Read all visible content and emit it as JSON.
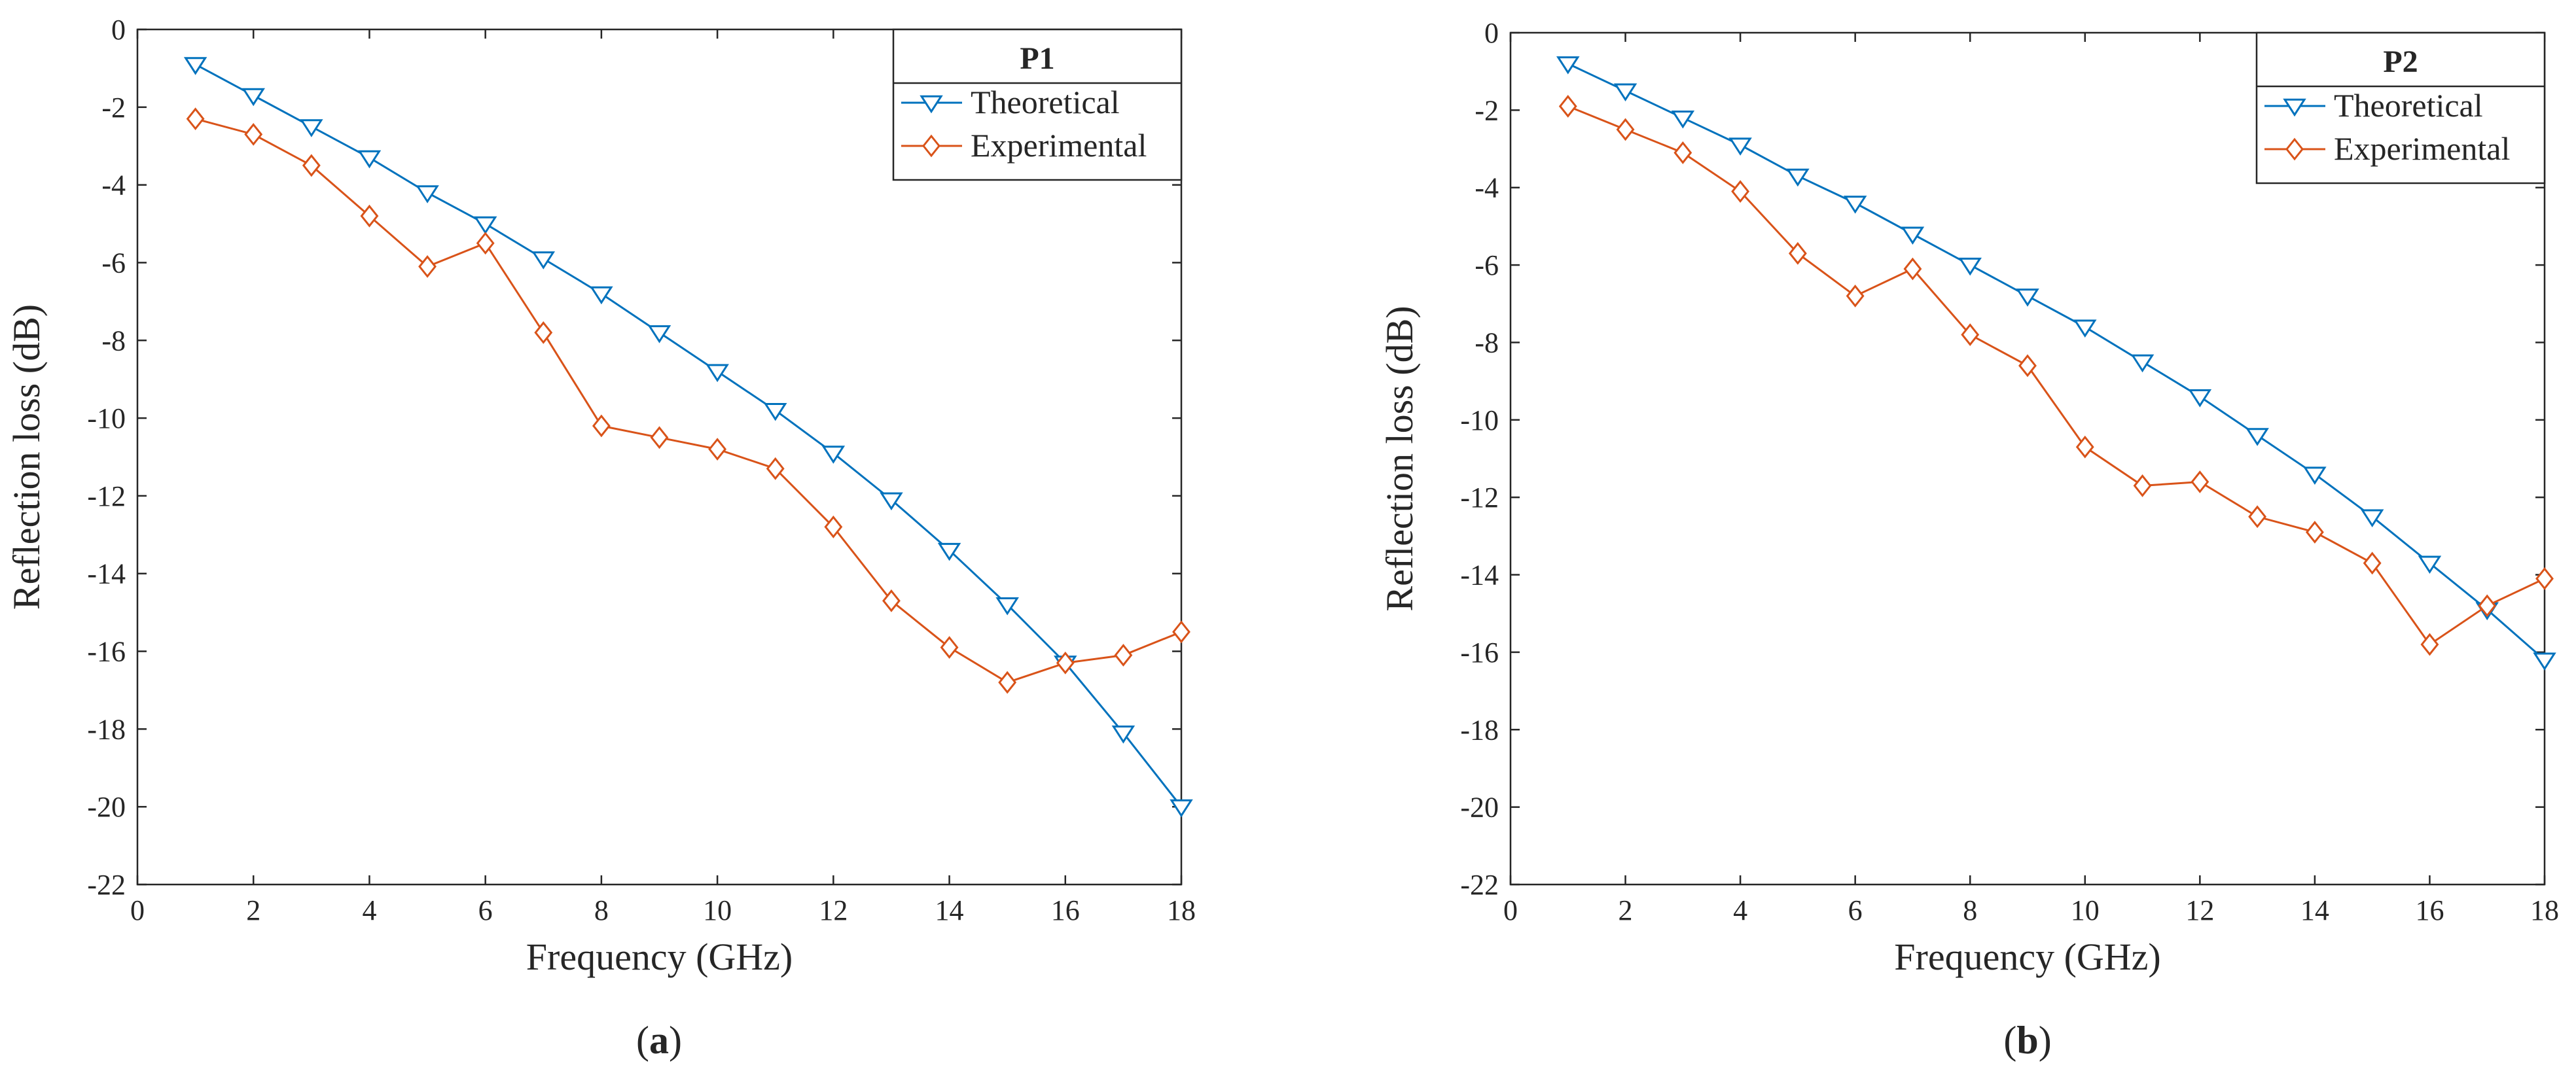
{
  "chart_data": [
    {
      "type": "line",
      "panel_label": "a",
      "legend_title": "P1",
      "xlabel": "Frequency (GHz)",
      "ylabel": "Reflection loss (dB)",
      "xlim": [
        0,
        18
      ],
      "ylim": [
        -22,
        0
      ],
      "xticks": [
        0,
        2,
        4,
        6,
        8,
        10,
        12,
        14,
        16,
        18
      ],
      "yticks": [
        0,
        -2,
        -4,
        -6,
        -8,
        -10,
        -12,
        -14,
        -16,
        -18,
        -20,
        -22
      ],
      "grid": false,
      "legend_position": "top-right",
      "x": [
        1,
        2,
        3,
        4,
        5,
        6,
        7,
        8,
        9,
        10,
        11,
        12,
        13,
        14,
        15,
        16,
        17,
        18
      ],
      "series": [
        {
          "name": "Theoretical",
          "color": "#0072BD",
          "marker": "triangle-down",
          "values": [
            -0.9,
            -1.7,
            -2.5,
            -3.3,
            -4.2,
            -5.0,
            -5.9,
            -6.8,
            -7.8,
            -8.8,
            -9.8,
            -10.9,
            -12.1,
            -13.4,
            -14.8,
            -16.3,
            -18.1,
            -20.0
          ]
        },
        {
          "name": "Experimental",
          "color": "#D95319",
          "marker": "diamond",
          "values": [
            -2.3,
            -2.7,
            -3.5,
            -4.8,
            -6.1,
            -5.5,
            -7.8,
            -10.2,
            -10.5,
            -10.8,
            -11.3,
            -12.8,
            -14.7,
            -15.9,
            -16.8,
            -16.3,
            -16.1,
            -15.5
          ]
        }
      ]
    },
    {
      "type": "line",
      "panel_label": "b",
      "legend_title": "P2",
      "xlabel": "Frequency (GHz)",
      "ylabel": "Reflection loss (dB)",
      "xlim": [
        0,
        18
      ],
      "ylim": [
        -22,
        0
      ],
      "xticks": [
        0,
        2,
        4,
        6,
        8,
        10,
        12,
        14,
        16,
        18
      ],
      "yticks": [
        0,
        -2,
        -4,
        -6,
        -8,
        -10,
        -12,
        -14,
        -16,
        -18,
        -20,
        -22
      ],
      "grid": false,
      "legend_position": "top-right",
      "x": [
        1,
        2,
        3,
        4,
        5,
        6,
        7,
        8,
        9,
        10,
        11,
        12,
        13,
        14,
        15,
        16,
        17,
        18
      ],
      "series": [
        {
          "name": "Theoretical",
          "color": "#0072BD",
          "marker": "triangle-down",
          "values": [
            -0.8,
            -1.5,
            -2.2,
            -2.9,
            -3.7,
            -4.4,
            -5.2,
            -6.0,
            -6.8,
            -7.6,
            -8.5,
            -9.4,
            -10.4,
            -11.4,
            -12.5,
            -13.7,
            -14.9,
            -16.2
          ]
        },
        {
          "name": "Experimental",
          "color": "#D95319",
          "marker": "diamond",
          "values": [
            -1.9,
            -2.5,
            -3.1,
            -4.1,
            -5.7,
            -6.8,
            -6.1,
            -7.8,
            -8.6,
            -10.7,
            -11.7,
            -11.6,
            -12.5,
            -12.9,
            -13.7,
            -15.8,
            -14.8,
            -14.1
          ]
        }
      ]
    }
  ]
}
